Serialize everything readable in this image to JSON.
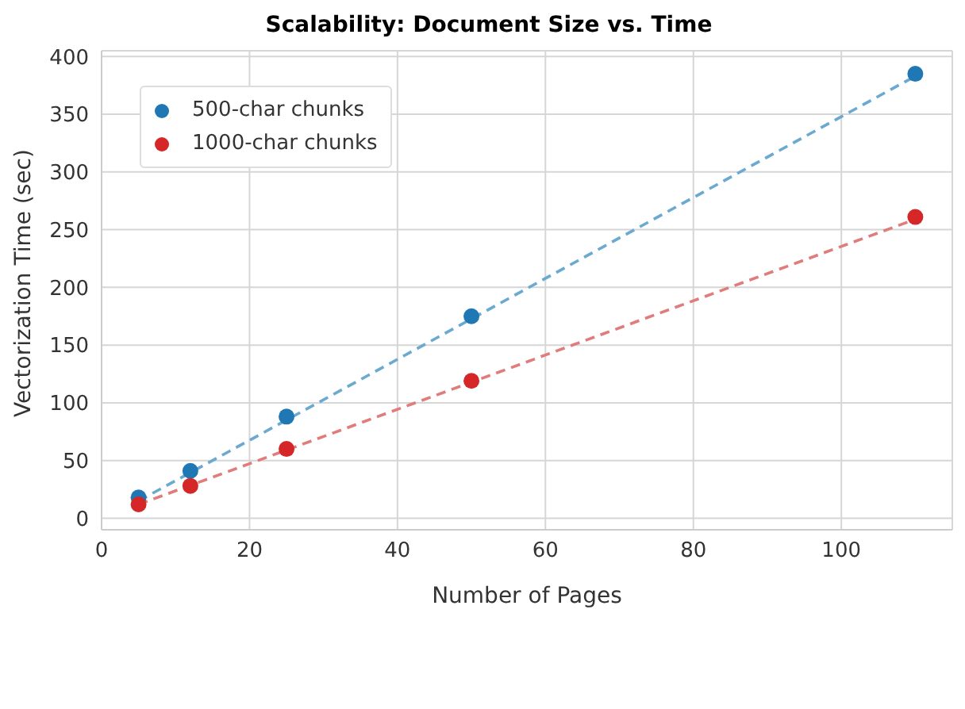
{
  "chart_data": {
    "type": "scatter",
    "title": "Scalability: Document Size vs. Time",
    "xlabel": "Number of Pages",
    "ylabel": "Vectorization Time (sec)",
    "series": [
      {
        "name": "500-char chunks",
        "color": "#1f77b4",
        "x": [
          5,
          12,
          25,
          50,
          110
        ],
        "values": [
          18,
          41,
          88,
          175,
          385
        ],
        "marker": "circle"
      },
      {
        "name": "1000-char chunks",
        "color": "#d62728",
        "x": [
          5,
          12,
          25,
          50,
          110
        ],
        "values": [
          12,
          28,
          60,
          119,
          261
        ],
        "marker": "circle"
      },
      {
        "type": "line",
        "color": "#6aa9d0",
        "x": [
          5,
          110
        ],
        "values": [
          15,
          383
        ],
        "line_style": "dashed",
        "marker": "none"
      },
      {
        "type": "line",
        "color": "#e07c7c",
        "x": [
          5,
          110
        ],
        "values": [
          12,
          259
        ],
        "line_style": "dashed",
        "marker": "none"
      }
    ],
    "xlim": [
      0,
      115
    ],
    "xticks": [
      0,
      20,
      40,
      60,
      80,
      100
    ],
    "ylim": [
      -10,
      405
    ],
    "yticks": [
      0,
      50,
      100,
      150,
      200,
      250,
      300,
      350,
      400
    ],
    "grid": true,
    "legend": "top left"
  }
}
